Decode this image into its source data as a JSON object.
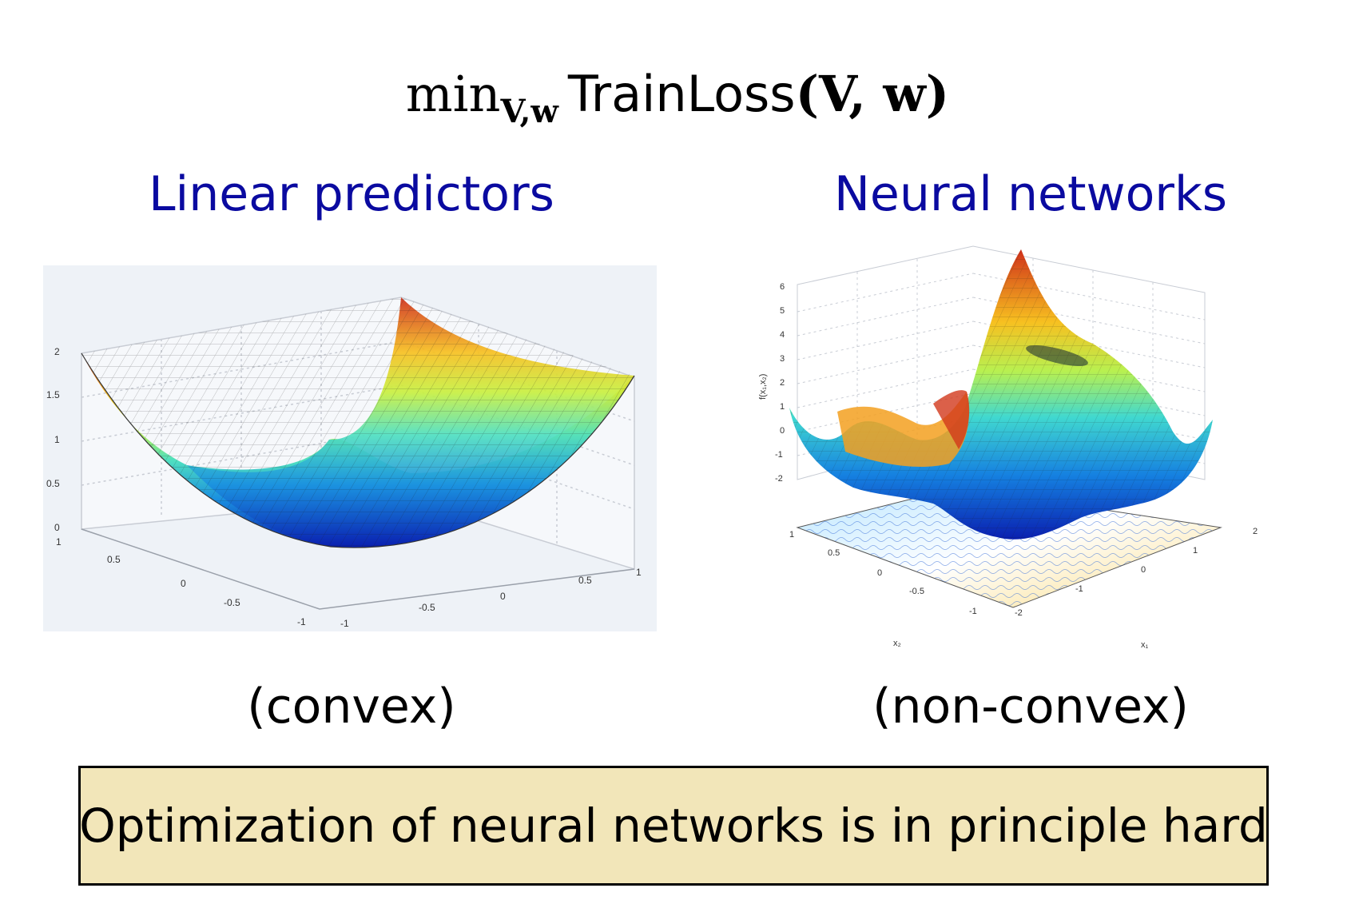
{
  "formula": {
    "min": "min",
    "subscript": "V,w",
    "function": "TrainLoss",
    "arguments": "(V, w)"
  },
  "columns": {
    "left": {
      "heading": "Linear predictors",
      "caption": "(convex)",
      "z_ticks": [
        "2",
        "1.5",
        "1",
        "0.5",
        "0"
      ],
      "y_ticks": [
        "1",
        "0.5",
        "0",
        "-0.5",
        "-1"
      ],
      "x_ticks": [
        "-1",
        "-0.5",
        "0",
        "0.5",
        "1"
      ]
    },
    "right": {
      "heading": "Neural networks",
      "caption": "(non-convex)",
      "z_ticks": [
        "6",
        "5",
        "4",
        "3",
        "2",
        "1",
        "0",
        "-1",
        "-2"
      ],
      "y_ticks": [
        "1",
        "0.5",
        "0",
        "-0.5",
        "-1"
      ],
      "x_ticks": [
        "-2",
        "-1",
        "0",
        "1",
        "2"
      ],
      "xlabel": "x₁",
      "ylabel": "x₂",
      "zlabel": "f(x₁,x₂)"
    }
  },
  "callout": {
    "text": "Optimization of neural networks is in principle hard",
    "background": "#f2e6b9"
  },
  "colors": {
    "heading": "#0a0aa0"
  }
}
